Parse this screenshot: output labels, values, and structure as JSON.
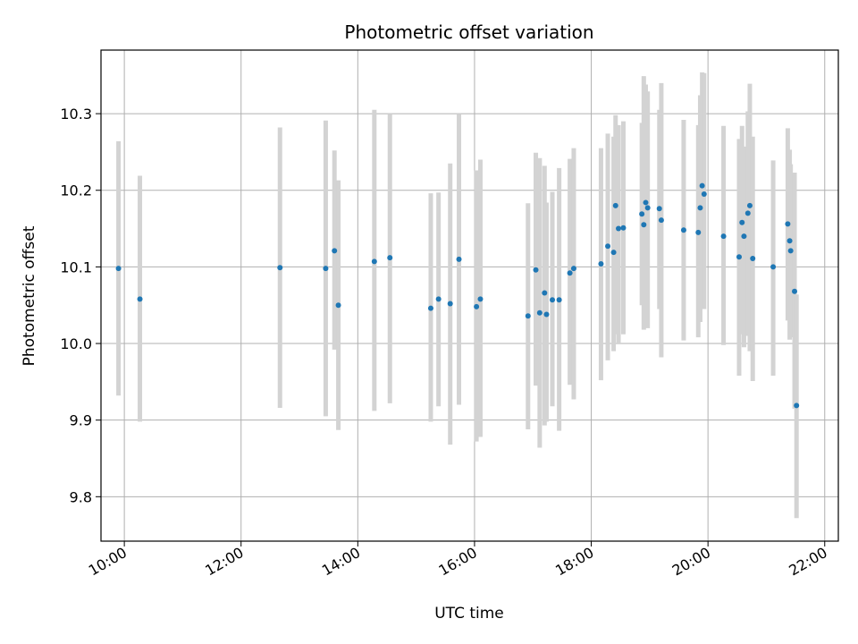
{
  "chart_data": {
    "type": "scatter",
    "title": "Photometric offset variation",
    "xlabel": "UTC time",
    "ylabel": "Photometric offset",
    "xlim": [
      "09:36",
      "22:14"
    ],
    "ylim": [
      9.742,
      10.383
    ],
    "x_ticks": [
      "10:00",
      "12:00",
      "14:00",
      "16:00",
      "18:00",
      "20:00",
      "22:00"
    ],
    "y_ticks": [
      "9.8",
      "9.9",
      "10.0",
      "10.1",
      "10.2",
      "10.3"
    ],
    "grid": true,
    "errorbar_color": "#d3d3d3",
    "point_color": "#1f77b4",
    "series": [
      {
        "x": [
          "09:54",
          "10:16",
          "12:40",
          "13:27",
          "13:36",
          "13:40",
          "14:17",
          "14:33",
          "15:15",
          "15:23",
          "15:35",
          "15:44",
          "16:02",
          "16:06",
          "16:55",
          "17:03",
          "17:07",
          "17:12",
          "17:14",
          "17:20",
          "17:27",
          "17:38",
          "17:42",
          "18:10",
          "18:17",
          "18:23",
          "18:25",
          "18:28",
          "18:33",
          "18:52",
          "18:54",
          "18:56",
          "18:58",
          "19:10",
          "19:12",
          "19:35",
          "19:50",
          "19:52",
          "19:54",
          "19:56",
          "20:16",
          "20:32",
          "20:35",
          "20:37",
          "20:41",
          "20:43",
          "20:46",
          "21:07",
          "21:22",
          "21:24",
          "21:25",
          "21:29",
          "21:31"
        ],
        "y": [
          10.098,
          10.058,
          10.099,
          10.098,
          10.121,
          10.05,
          10.107,
          10.112,
          10.046,
          10.058,
          10.052,
          10.11,
          10.048,
          10.058,
          10.036,
          10.096,
          10.04,
          10.066,
          10.038,
          10.057,
          10.057,
          10.092,
          10.098,
          10.104,
          10.127,
          10.119,
          10.18,
          10.15,
          10.151,
          10.169,
          10.155,
          10.184,
          10.177,
          10.176,
          10.161,
          10.148,
          10.145,
          10.177,
          10.206,
          10.195,
          10.14,
          10.113,
          10.158,
          10.14,
          10.17,
          10.18,
          10.111,
          10.1,
          10.156,
          10.134,
          10.121,
          10.068,
          9.919
        ],
        "y_low": [
          9.932,
          9.898,
          9.916,
          9.905,
          9.992,
          9.887,
          9.912,
          9.922,
          9.898,
          9.918,
          9.868,
          9.92,
          9.872,
          9.878,
          9.888,
          9.945,
          9.864,
          9.893,
          9.898,
          9.918,
          9.886,
          9.946,
          9.927,
          9.952,
          9.978,
          9.99,
          10.012,
          10.0,
          10.012,
          10.05,
          10.018,
          10.04,
          10.02,
          10.045,
          9.982,
          10.004,
          10.008,
          10.028,
          10.055,
          10.045,
          9.998,
          9.958,
          10.012,
          9.995,
          10.01,
          9.99,
          9.951,
          9.958,
          10.03,
          10.005,
          10.008,
          9.915,
          9.772
        ],
        "y_high": [
          10.264,
          10.219,
          10.282,
          10.291,
          10.252,
          10.213,
          10.305,
          10.3,
          10.196,
          10.197,
          10.235,
          10.3,
          10.226,
          10.24,
          10.183,
          10.249,
          10.242,
          10.232,
          10.184,
          10.198,
          10.229,
          10.241,
          10.255,
          10.255,
          10.274,
          10.27,
          10.298,
          10.285,
          10.29,
          10.288,
          10.349,
          10.338,
          10.329,
          10.305,
          10.34,
          10.292,
          10.285,
          10.324,
          10.354,
          10.353,
          10.284,
          10.267,
          10.284,
          10.257,
          10.303,
          10.339,
          10.27,
          10.239,
          10.281,
          10.253,
          10.234,
          10.223,
          10.064
        ]
      }
    ]
  }
}
